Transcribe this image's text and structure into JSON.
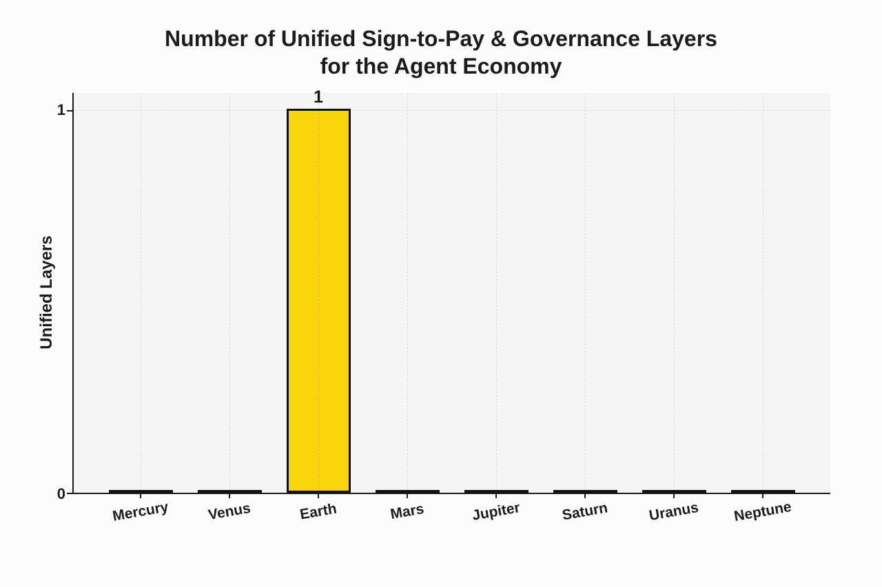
{
  "title": {
    "line1": "Number of Unified Sign-to-Pay & Governance Layers",
    "line2": "for the Agent Economy"
  },
  "chart_data": {
    "type": "bar",
    "title": "Number of Unified Sign-to-Pay & Governance Layers for the Agent Economy",
    "categories": [
      "Mercury",
      "Venus",
      "Earth",
      "Mars",
      "Jupiter",
      "Saturn",
      "Uranus",
      "Neptune"
    ],
    "values": [
      0,
      0,
      1,
      0,
      0,
      0,
      0,
      0
    ],
    "bar_labels": [
      "",
      "",
      "1",
      "",
      "",
      "",
      "",
      ""
    ],
    "xlabel": "",
    "ylabel": "Unified Layers",
    "ylim": [
      0,
      1
    ],
    "yticks": [
      0,
      1
    ],
    "ytick_labels": [
      "0",
      "1"
    ],
    "grid": "dashed vertical at each category center and horizontal at y=1",
    "legend_position": "none",
    "colors": {
      "bar_fill": "#FAD40C",
      "bar_edge": "#111111",
      "plot_background": "#f5f5f6",
      "page_background": "#fcfcfc",
      "gridline": "#d8d8dc",
      "axis": "#1a1a1a",
      "text": "#1c1c1c"
    }
  }
}
